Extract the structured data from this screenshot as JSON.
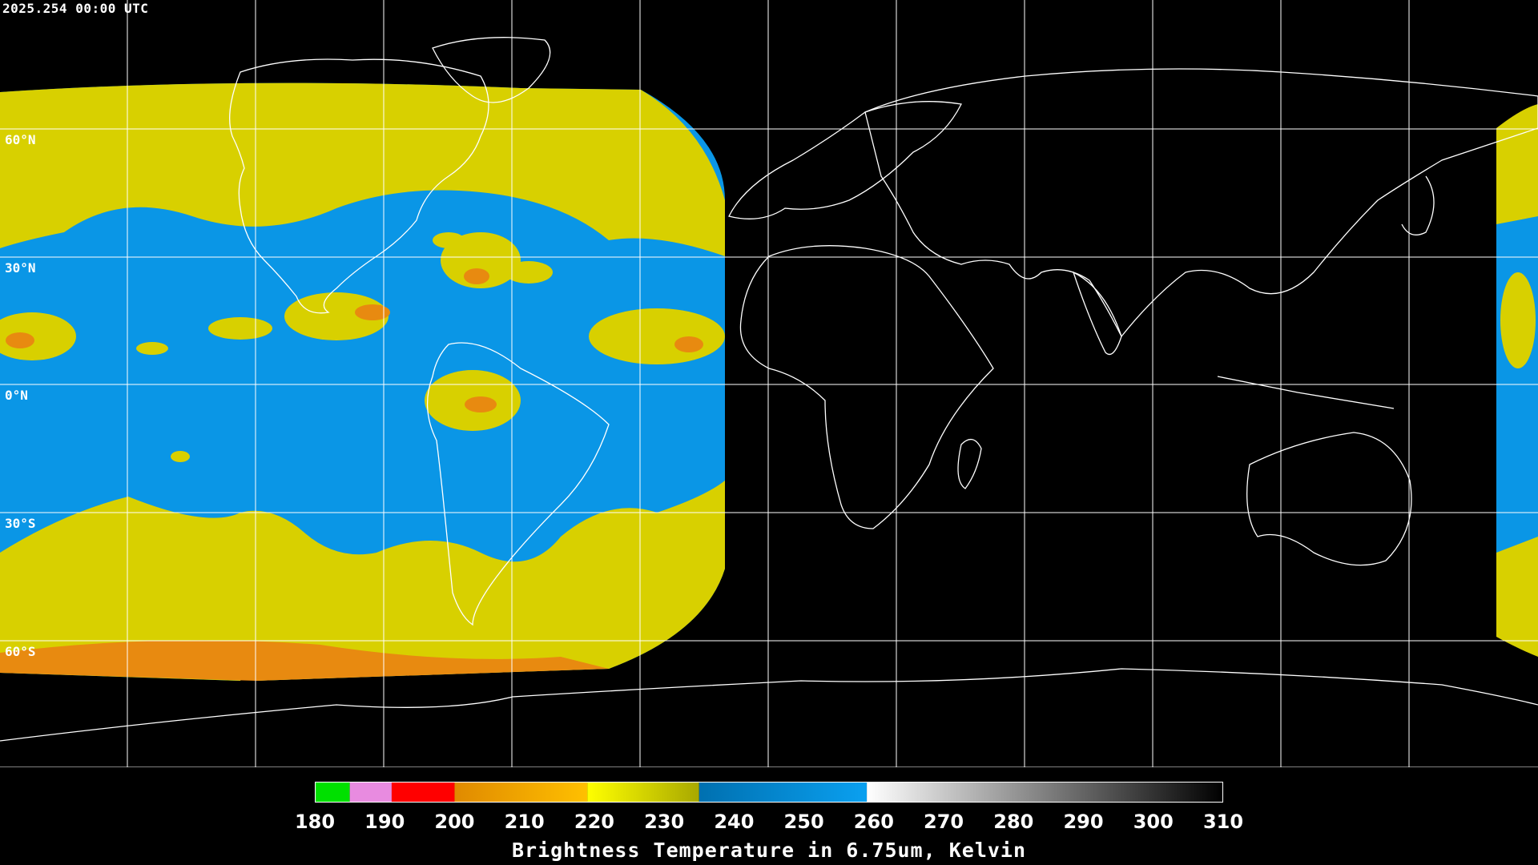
{
  "header": {
    "timestamp": "2025.254 00:00 UTC"
  },
  "map": {
    "lat_labels": [
      "60°N",
      "30°N",
      "0°N",
      "30°S",
      "60°S"
    ],
    "colors": {
      "background": "#000000",
      "coastline": "#ffffff",
      "gridline": "#ffffff",
      "moist": "#0a96e6",
      "dry_yellow": "#d8d000",
      "dry_orange": "#e88a10",
      "dry_red": "#d83020"
    }
  },
  "colorbar": {
    "title": "Brightness Temperature in 6.75um, Kelvin",
    "ticks": [
      "180",
      "190",
      "200",
      "210",
      "220",
      "230",
      "240",
      "250",
      "260",
      "270",
      "280",
      "290",
      "300",
      "310"
    ],
    "range": [
      180,
      310
    ],
    "segments": [
      {
        "from": 180,
        "to": 185,
        "color": "#00e000"
      },
      {
        "from": 185,
        "to": 191,
        "color": "#e88be0"
      },
      {
        "from": 191,
        "to": 200,
        "color": "#ff0000"
      },
      {
        "from": 200,
        "to": 219,
        "color": "#e08a00",
        "to_color": "#ffc000"
      },
      {
        "from": 219,
        "to": 235,
        "color": "#ffff00",
        "to_color": "#a8a800"
      },
      {
        "from": 235,
        "to": 259,
        "color": "#0070b0",
        "to_color": "#0aa0f0"
      },
      {
        "from": 259,
        "to": 310,
        "color": "#ffffff",
        "to_color": "#000000"
      }
    ]
  }
}
